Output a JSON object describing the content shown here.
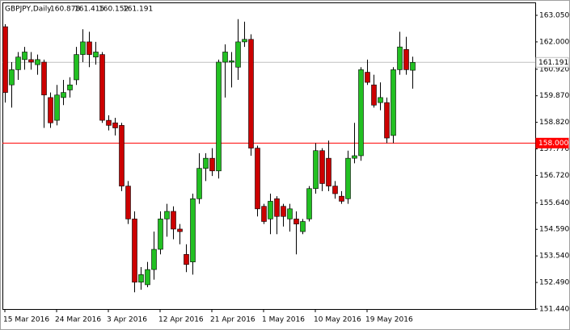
{
  "chart_data": {
    "type": "candlestick",
    "header": "GBPJPY,Daily",
    "header_values": [
      160.878,
      161.415,
      160.152,
      161.191
    ],
    "categories": [
      "15 Mar 2016",
      null,
      null,
      null,
      null,
      null,
      null,
      null,
      "24 Mar 2016",
      null,
      null,
      null,
      null,
      null,
      null,
      null,
      "3 Apr 2016",
      null,
      null,
      null,
      null,
      null,
      null,
      null,
      "12 Apr 2016",
      null,
      null,
      null,
      null,
      null,
      null,
      null,
      "21 Apr 2016",
      null,
      null,
      null,
      null,
      null,
      null,
      null,
      "1 May 2016",
      null,
      null,
      null,
      null,
      null,
      null,
      null,
      "10 May 2016",
      null,
      null,
      null,
      null,
      null,
      null,
      null,
      "19 May 2016",
      null,
      null,
      null,
      null,
      null,
      null,
      null
    ],
    "open": [
      162.6,
      160.3,
      160.9,
      161.3,
      161.3,
      161.1,
      161.2,
      159.8,
      158.9,
      159.8,
      160.1,
      160.5,
      161.5,
      162.0,
      161.4,
      161.5,
      158.9,
      158.8,
      158.7,
      156.3,
      155.0,
      152.5,
      152.4,
      153.0,
      153.8,
      155.0,
      155.3,
      154.6,
      153.6,
      153.3,
      155.8,
      157.0,
      157.4,
      156.9,
      161.2,
      161.2,
      161.0,
      162.0,
      162.1,
      157.8,
      155.5,
      155.0,
      155.8,
      155.5,
      155.0,
      155.0,
      154.5,
      155.0,
      156.2,
      157.7,
      157.4,
      156.3,
      155.9,
      155.8,
      157.4,
      157.5,
      160.8,
      160.3,
      159.6,
      159.6,
      158.3,
      160.9,
      161.7,
      160.878
    ],
    "high": [
      162.7,
      161.2,
      161.6,
      161.8,
      161.6,
      161.5,
      161.3,
      160.0,
      160.3,
      160.5,
      160.6,
      161.8,
      162.5,
      162.4,
      162.0,
      161.6,
      159.1,
      159.0,
      158.8,
      156.5,
      155.3,
      153.1,
      153.3,
      154.5,
      155.3,
      155.6,
      155.5,
      154.8,
      154.0,
      156.0,
      157.6,
      157.6,
      157.8,
      161.3,
      161.9,
      161.6,
      162.9,
      162.8,
      162.3,
      157.9,
      155.6,
      156.0,
      155.9,
      155.6,
      155.6,
      155.3,
      155.0,
      156.3,
      158.0,
      157.8,
      158.1,
      156.5,
      156.1,
      157.7,
      158.8,
      161.0,
      161.3,
      160.7,
      160.4,
      159.8,
      161.0,
      162.4,
      162.2,
      161.415
    ],
    "low": [
      159.6,
      159.4,
      160.5,
      160.9,
      160.9,
      160.7,
      158.6,
      158.6,
      158.7,
      159.5,
      159.8,
      160.3,
      161.2,
      161.0,
      161.1,
      158.8,
      158.5,
      158.3,
      156.1,
      154.8,
      152.1,
      152.2,
      152.3,
      152.6,
      153.6,
      154.3,
      154.2,
      154.0,
      152.9,
      152.8,
      155.6,
      156.5,
      156.7,
      156.6,
      159.8,
      160.2,
      160.5,
      161.8,
      157.5,
      155.1,
      154.8,
      154.4,
      154.4,
      154.7,
      154.5,
      153.6,
      154.4,
      154.9,
      156.0,
      156.1,
      156.1,
      155.8,
      155.6,
      155.6,
      157.2,
      157.3,
      160.3,
      159.4,
      159.3,
      158.0,
      158.0,
      160.7,
      160.7,
      160.152
    ],
    "close": [
      160.0,
      160.9,
      161.4,
      161.6,
      161.2,
      161.3,
      159.9,
      158.8,
      159.9,
      160.0,
      160.3,
      161.5,
      162.0,
      161.5,
      161.6,
      158.9,
      158.7,
      158.6,
      156.3,
      155.0,
      152.5,
      152.8,
      153.0,
      153.8,
      155.0,
      155.3,
      154.6,
      154.5,
      153.2,
      155.8,
      157.0,
      157.4,
      156.9,
      161.2,
      161.6,
      161.25,
      162.0,
      162.1,
      157.8,
      155.4,
      154.9,
      155.7,
      155.1,
      155.1,
      155.4,
      154.8,
      154.9,
      156.2,
      157.7,
      156.4,
      156.3,
      156.0,
      155.7,
      157.4,
      157.5,
      160.9,
      160.4,
      159.5,
      159.8,
      158.2,
      160.9,
      161.8,
      160.9,
      161.191
    ],
    "up_color": "#22c022",
    "down_color": "#cc0000",
    "levels": [
      {
        "value": 158,
        "label": "158.000",
        "color": "#ff0000"
      },
      {
        "value": 161.191,
        "label": "161.191",
        "color": "#c0c0c0"
      }
    ],
    "ylim": [
      151.44,
      163.56
    ],
    "yticks": [
      {
        "value": 163.05,
        "label": "163.050"
      },
      {
        "value": 162,
        "label": "162.000"
      },
      {
        "value": 160.92,
        "label": "160.920"
      },
      {
        "value": 159.87,
        "label": "159.870"
      },
      {
        "value": 158.82,
        "label": "158.820"
      },
      {
        "value": 157.77,
        "label": "157.770"
      },
      {
        "value": 156.72,
        "label": "156.720"
      },
      {
        "value": 155.64,
        "label": "155.640"
      },
      {
        "value": 154.59,
        "label": "154.590"
      },
      {
        "value": 153.54,
        "label": "153.540"
      },
      {
        "value": 152.49,
        "label": "152.490"
      },
      {
        "value": 151.44,
        "label": "151.440"
      }
    ]
  }
}
